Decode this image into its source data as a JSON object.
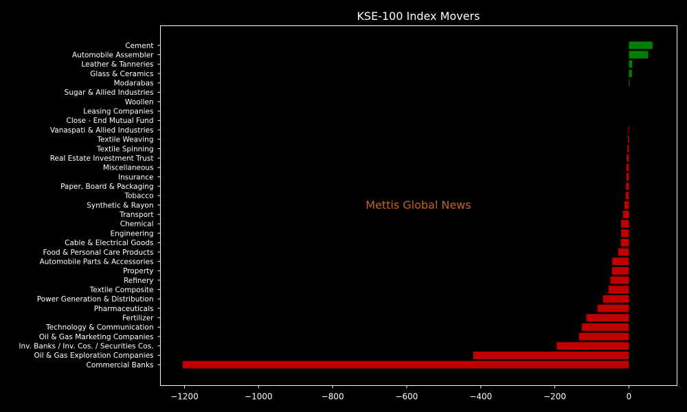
{
  "colors": {
    "background": "#000000",
    "text": "#ffffff",
    "positive": "#008000",
    "negative": "#c00000",
    "watermark": "#c8641e"
  },
  "chart_data": {
    "type": "bar",
    "orientation": "horizontal",
    "title": "KSE-100 Index Movers",
    "watermark": "Mettis Global News",
    "xlabel": "",
    "ylabel": "",
    "xlim": [
      -1265,
      130
    ],
    "xticks": [
      -1200,
      -1000,
      -800,
      -600,
      -400,
      -200,
      0
    ],
    "xtick_labels": [
      "−1200",
      "−1000",
      "−800",
      "−600",
      "−400",
      "−200",
      "0"
    ],
    "grid": false,
    "categories": [
      "Cement",
      "Automobile Assembler",
      "Leather & Tanneries",
      "Glass & Ceramics",
      "Modarabas",
      "Sugar & Allied Industries",
      "Woollen",
      "Leasing Companies",
      "Close - End Mutual Fund",
      "Vanaspati & Allied Industries",
      "Textile Weaving",
      "Textile Spinning",
      "Real Estate Investment Trust",
      "Miscellaneous",
      "Insurance",
      "Paper, Board & Packaging",
      "Tobacco",
      "Synthetic & Rayon",
      "Transport",
      "Chemical",
      "Engineering",
      "Cable & Electrical Goods",
      "Food & Personal Care Products",
      "Automobile Parts & Accessories",
      "Property",
      "Refinery",
      "Textile Composite",
      "Power Generation & Distribution",
      "Pharmaceuticals",
      "Fertilizer",
      "Technology & Communication",
      "Oil & Gas Marketing Companies",
      "Inv. Banks / Inv. Cos. / Securities Cos.",
      "Oil & Gas Exploration Companies",
      "Commercial Banks"
    ],
    "values": [
      64,
      52,
      9,
      8,
      2,
      0,
      0,
      0,
      0,
      -2,
      -3,
      -4,
      -6,
      -7,
      -7,
      -8,
      -9,
      -12,
      -16,
      -21,
      -21,
      -22,
      -29,
      -45,
      -46,
      -50,
      -55,
      -70,
      -85,
      -115,
      -127,
      -135,
      -195,
      -420,
      -1205
    ]
  }
}
